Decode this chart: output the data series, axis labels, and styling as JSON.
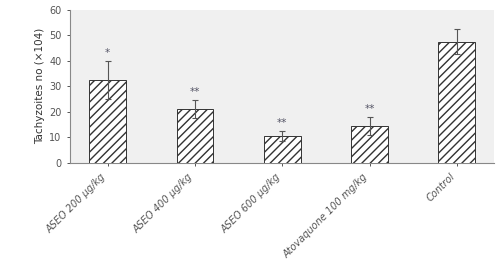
{
  "categories": [
    "ASEO 200 μg/kg",
    "ASEO 400 μg/kg",
    "ASEO 600 μg/kg",
    "Atovaquone 100 mg/kg",
    "Control"
  ],
  "values": [
    32.5,
    21.0,
    10.5,
    14.5,
    47.5
  ],
  "errors": [
    7.5,
    3.5,
    2.0,
    3.5,
    5.0
  ],
  "significance": [
    "*",
    "**",
    "**",
    "**",
    ""
  ],
  "ylabel": "Tachyzoites no (×104)",
  "ylim": [
    0,
    60
  ],
  "yticks": [
    0,
    10,
    20,
    30,
    40,
    50,
    60
  ],
  "bar_color": "white",
  "hatch_pattern": "////",
  "edge_color": "#333333",
  "background_color": "white",
  "sig_fontsize": 7.5,
  "ylabel_fontsize": 7.5,
  "tick_fontsize": 7.0,
  "bar_width": 0.42
}
